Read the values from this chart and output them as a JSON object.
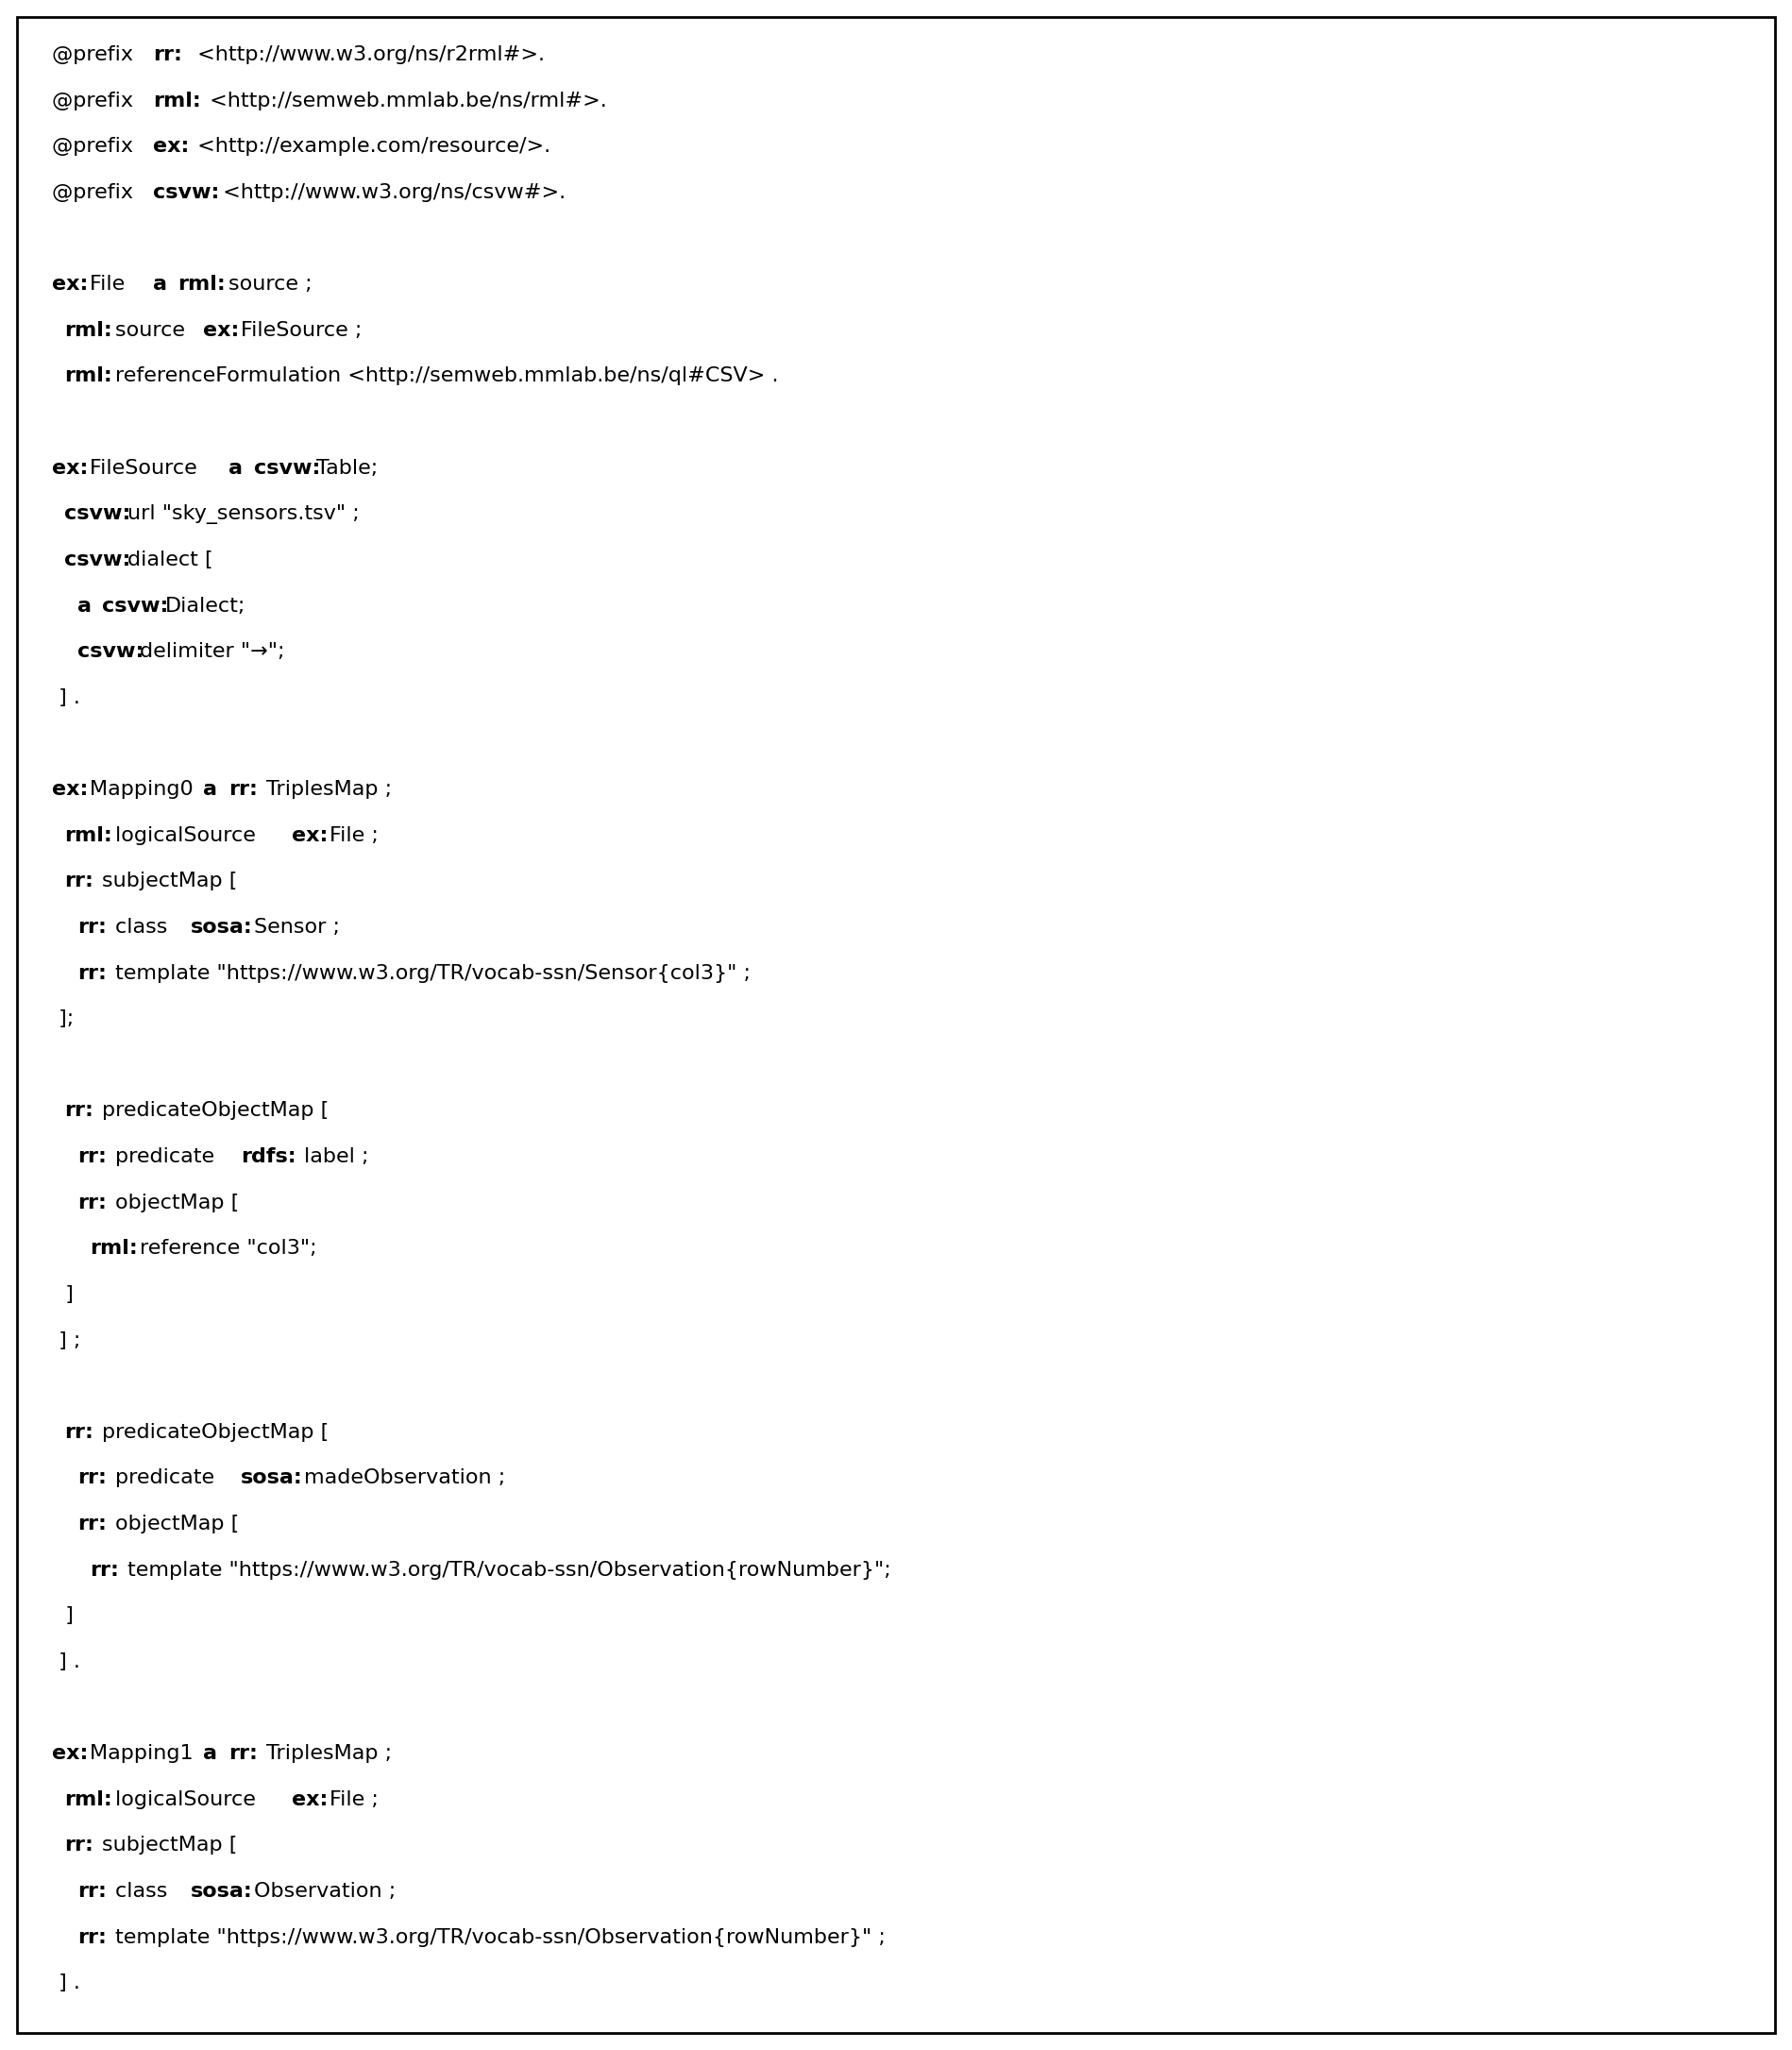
{
  "background_color": "#ffffff",
  "border_color": "#000000",
  "font_size": 16,
  "lines": [
    "@prefix rr: <http://www.w3.org/ns/r2rml#>.",
    "@prefix rml: <http://semweb.mmlab.be/ns/rml#>.",
    "@prefix ex: <http://example.com/resource/>.",
    "@prefix csvw: <http://www.w3.org/ns/csvw#>.",
    "",
    "ex:File a rml:source ;",
    " rml:source ex:FileSource ;",
    " rml:referenceFormulation <http://semweb.mmlab.be/ns/ql#CSV> .",
    "",
    "ex:FileSource a csvw:Table;",
    " csvw:url \"sky_sensors.tsv\" ;",
    " csvw:dialect [",
    "  a csvw:Dialect;",
    "  csvw:delimiter \"→\";",
    " ] .",
    "",
    "ex:Mapping0 a rr:TriplesMap ;",
    " rml:logicalSource ex:File ;",
    " rr:subjectMap [",
    "  rr:class sosa:Sensor ;",
    "  rr:template \"https://www.w3.org/TR/vocab-ssn/Sensor{col3}\" ;",
    " ];",
    "",
    " rr:predicateObjectMap [",
    "  rr:predicate rdfs:label ;",
    "  rr:objectMap [",
    "   rml:reference \"col3\";",
    "  ]",
    " ] ;",
    "",
    " rr:predicateObjectMap [",
    "  rr:predicate sosa:madeObservation ;",
    "  rr:objectMap [",
    "   rr:template \"https://www.w3.org/TR/vocab-ssn/Observation{rowNumber}\";",
    "  ]",
    " ] .",
    "",
    "ex:Mapping1 a rr:TriplesMap ;",
    " rml:logicalSource ex:File ;",
    " rr:subjectMap [",
    "  rr:class sosa:Observation ;",
    "  rr:template \"https://www.w3.org/TR/vocab-ssn/Observation{rowNumber}\" ;",
    " ] ."
  ],
  "bold_prefixes": [
    "rr:",
    "rml:",
    "ex:",
    "csvw:",
    "sosa:",
    "rdfs:"
  ]
}
